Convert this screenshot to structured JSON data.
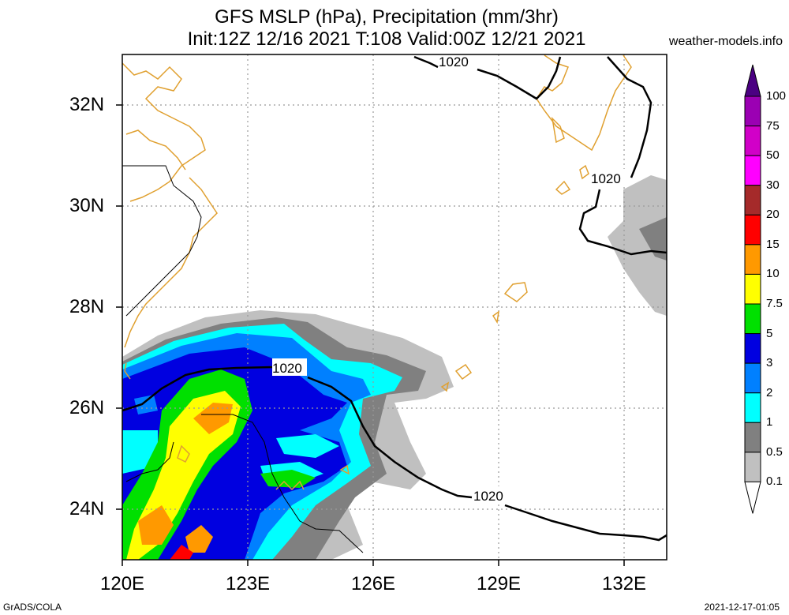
{
  "title": {
    "line1": "GFS MSLP (hPa), Precipitation (mm/3hr)",
    "line2": "Init:12Z 12/16 2021 T:108 Valid:00Z 12/21 2021"
  },
  "source": "weather-models.info",
  "footer": {
    "left": "GrADS/COLA",
    "right": "2021-12-17-01:05"
  },
  "map": {
    "lon_range": [
      120,
      133
    ],
    "lat_range": [
      23,
      33
    ],
    "grid": true,
    "lat_labels": [
      "32N",
      "30N",
      "28N",
      "26N",
      "24N"
    ],
    "lon_labels": [
      "120E",
      "123E",
      "126E",
      "129E",
      "132E"
    ],
    "isobar_labels": [
      "1020",
      "1020",
      "1020",
      "1020"
    ],
    "isobar_value_hPa": 1020
  },
  "legend": {
    "labels": [
      "100",
      "75",
      "50",
      "30",
      "20",
      "15",
      "10",
      "7.5",
      "5",
      "3",
      "2",
      "1",
      "0.5",
      "0.1"
    ],
    "colors": [
      "#4b0082",
      "#9b00b3",
      "#d100c8",
      "#ff00ff",
      "#a52a2a",
      "#ff0000",
      "#ff9900",
      "#ffff00",
      "#00e000",
      "#0000e0",
      "#0080ff",
      "#00ffff",
      "#808080",
      "#c0c0c0",
      "#ffffff"
    ]
  },
  "colors": {
    "coast": "#e0a030",
    "isobar": "#000000",
    "grid": "#999999"
  }
}
